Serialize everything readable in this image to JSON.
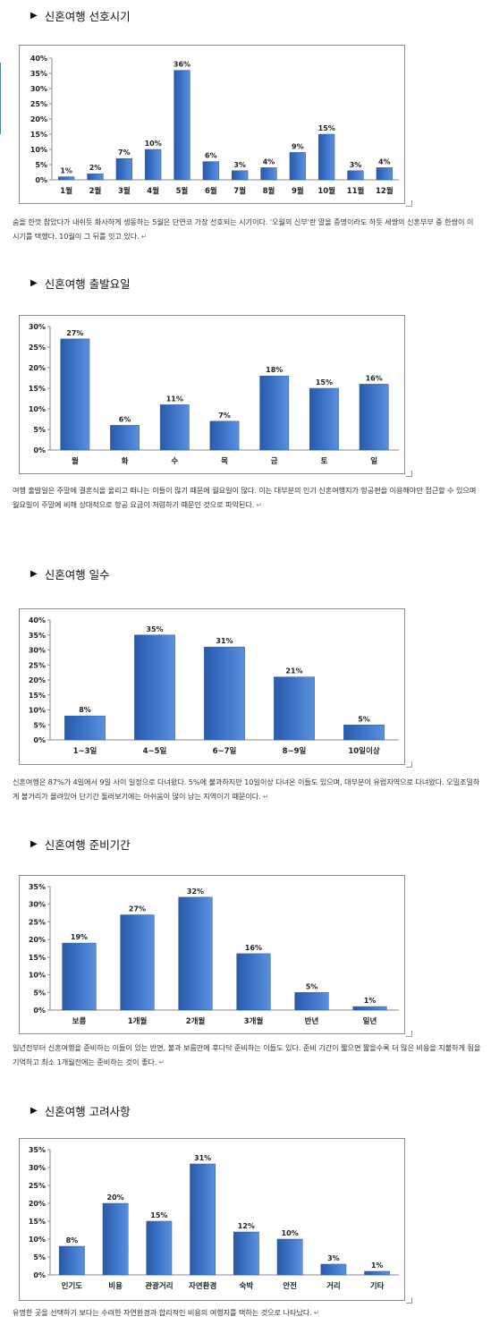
{
  "sections": [
    {
      "heading": "신혼여행 선호시기",
      "caption": "숨을 한껏 참았다가 내쉬듯 화사하게 생동하는 5월은 단연코 가장 선호되는 시기이다. '오월의 신부'란 말을 증명이라도 하듯 세쌍의 신혼부부 중 한쌍이 이 시기를 택했다. 10월이 그 뒤를 잇고 있다."
    },
    {
      "heading": "신혼여행 출발요일",
      "caption": "여행 출발일은 주말에 결혼식을 올리고 떠나는 이들이 많기 때문에 월요일이 많다. 이는 대부분의 인기 신혼여행지가 항공편을 이용해야만 접근할 수 있으며 월요일이 주말에 비해 상대적으로 항공 요금이 저렴하기 때문인 것으로 파악된다."
    },
    {
      "heading": "신혼여행 일수",
      "caption": "신혼여행은 87%가 4일에서 9일 사이 일정으로 다녀왔다. 5%에 불과하지만 10일이상 다녀온 이들도 있으며, 대부분이 유럽지역으로 다녀왔다. 오밀조밀하게 볼거리가 몰려있어 단기간 둘러보기에는 아쉬움이 많이 남는 지역이기 때문이다."
    },
    {
      "heading": "신혼여행 준비기간",
      "caption": "일년전부터 신혼여행을 준비하는 이들이 있는 반면, 불과 보름만에 후다닥 준비하는 이들도 있다. 준비 기간이 짧으면 짧을수록 더 많은 비용을 지불하게 됨을 기억하고 최소 1개월전에는 준비하는 것이 좋다."
    },
    {
      "heading": "신혼여행 고려사항",
      "caption": "유명한 곳을 선택하기 보다는 수려한 자연환경과 합리적인 비용의 여행지를 택하는 것으로 나타났다."
    }
  ],
  "chart_data": [
    {
      "type": "bar",
      "title": "신혼여행 선호시기",
      "categories": [
        "1월",
        "2월",
        "3월",
        "4월",
        "5월",
        "6월",
        "7월",
        "8월",
        "9월",
        "10월",
        "11월",
        "12월"
      ],
      "values": [
        1,
        2,
        7,
        10,
        36,
        6,
        3,
        4,
        9,
        15,
        3,
        4
      ],
      "value_labels": [
        "1%",
        "2%",
        "7%",
        "10%",
        "36%",
        "6%",
        "3%",
        "4%",
        "9%",
        "15%",
        "3%",
        "4%"
      ],
      "y_ticks": [
        "0%",
        "5%",
        "10%",
        "15%",
        "20%",
        "25%",
        "30%",
        "35%",
        "40%"
      ],
      "ylim": [
        0,
        40
      ],
      "grid": false,
      "bar_color": "#3a72c6"
    },
    {
      "type": "bar",
      "title": "신혼여행 출발요일",
      "categories": [
        "월",
        "화",
        "수",
        "목",
        "금",
        "토",
        "일"
      ],
      "values": [
        27,
        6,
        11,
        7,
        18,
        15,
        16
      ],
      "value_labels": [
        "27%",
        "6%",
        "11%",
        "7%",
        "18%",
        "15%",
        "16%"
      ],
      "y_ticks": [
        "0%",
        "5%",
        "10%",
        "15%",
        "20%",
        "25%",
        "30%"
      ],
      "ylim": [
        0,
        30
      ],
      "grid": false,
      "bar_color": "#3a72c6"
    },
    {
      "type": "bar",
      "title": "신혼여행 일수",
      "categories": [
        "1~3일",
        "4~5일",
        "6~7일",
        "8~9일",
        "10일이상"
      ],
      "values": [
        8,
        35,
        31,
        21,
        5
      ],
      "value_labels": [
        "8%",
        "35%",
        "31%",
        "21%",
        "5%"
      ],
      "y_ticks": [
        "0%",
        "5%",
        "10%",
        "15%",
        "20%",
        "25%",
        "30%",
        "35%",
        "40%"
      ],
      "ylim": [
        0,
        40
      ],
      "grid": false,
      "bar_color": "#3a72c6"
    },
    {
      "type": "bar",
      "title": "신혼여행 준비기간",
      "categories": [
        "보름",
        "1개월",
        "2개월",
        "3개월",
        "반년",
        "일년"
      ],
      "values": [
        19,
        27,
        32,
        16,
        5,
        1
      ],
      "value_labels": [
        "19%",
        "27%",
        "32%",
        "16%",
        "5%",
        "1%"
      ],
      "y_ticks": [
        "0%",
        "5%",
        "10%",
        "15%",
        "20%",
        "25%",
        "30%",
        "35%"
      ],
      "ylim": [
        0,
        35
      ],
      "grid": false,
      "bar_color": "#3a72c6"
    },
    {
      "type": "bar",
      "title": "신혼여행 고려사항",
      "categories": [
        "인기도",
        "비용",
        "관광거리",
        "자연환경",
        "숙박",
        "안전",
        "거리",
        "기타"
      ],
      "values": [
        8,
        20,
        15,
        31,
        12,
        10,
        3,
        1
      ],
      "value_labels": [
        "8%",
        "20%",
        "15%",
        "31%",
        "12%",
        "10%",
        "3%",
        "1%"
      ],
      "y_ticks": [
        "0%",
        "5%",
        "10%",
        "15%",
        "20%",
        "25%",
        "30%",
        "35%"
      ],
      "ylim": [
        0,
        35
      ],
      "grid": false,
      "bar_color": "#3a72c6"
    }
  ]
}
